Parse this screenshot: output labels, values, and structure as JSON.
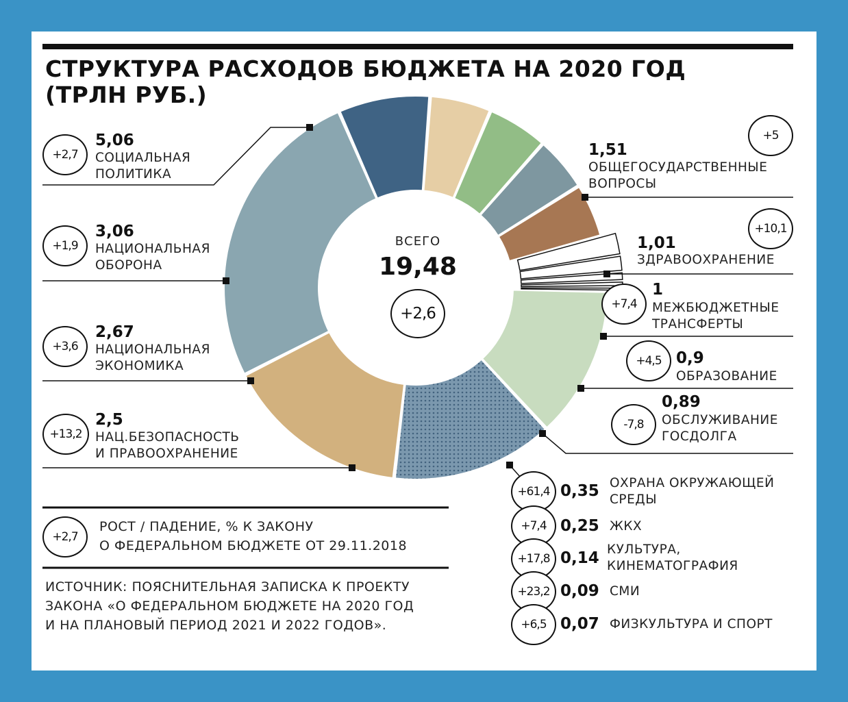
{
  "title_line1": "СТРУКТУРА РАСХОДОВ БЮДЖЕТА НА 2020 ГОД",
  "title_line2": "(ТРЛН РУБ.)",
  "center": {
    "label": "ВСЕГО",
    "total": "19,48",
    "change": "+2,6"
  },
  "legend": {
    "sample": "+2,7",
    "text": "РОСТ / ПАДЕНИЕ, % К ЗАКОНУ\nО ФЕДЕРАЛЬНОМ БЮДЖЕТЕ ОТ 29.11.2018"
  },
  "source": "ИСТОЧНИК: ПОЯСНИТЕЛЬНАЯ ЗАПИСКА К ПРОЕКТУ\nЗАКОНА «О ФЕДЕРАЛЬНОМ БЮДЖЕТЕ НА 2020 ГОД\nИ НА ПЛАНОВЫЙ ПЕРИОД 2021 И 2022 ГОДОВ».",
  "colors": {
    "social": "#8aa6b0",
    "general": "#3f6384",
    "health": "#e6cea5",
    "transfers": "#92bd86",
    "education": "#7e97a0",
    "debt": "#a77753",
    "small": "#ffffff",
    "security": "#c8dcbf",
    "economy": "#6f8ea6",
    "defense": "#d2b17e"
  },
  "chart_data": {
    "type": "pie",
    "variant": "donut",
    "unit": "трлн руб.",
    "total": 19.48,
    "total_change": 2.6,
    "segments": [
      {
        "key": "social",
        "value": 5.06,
        "value_label": "5,06",
        "change": "+2,7",
        "label": "СОЦИАЛЬНАЯ\nПОЛИТИКА"
      },
      {
        "key": "general",
        "value": 1.51,
        "value_label": "1,51",
        "change": "+5",
        "label": "ОБЩЕГОСУДАРСТВЕННЫЕ\nВОПРОСЫ"
      },
      {
        "key": "health",
        "value": 1.01,
        "value_label": "1,01",
        "change": "+10,1",
        "label": "ЗДРАВООХРАНЕНИЕ"
      },
      {
        "key": "transfers",
        "value": 1.0,
        "value_label": "1",
        "change": "+7,4",
        "label": "МЕЖБЮДЖЕТНЫЕ\nТРАНСФЕРТЫ"
      },
      {
        "key": "education",
        "value": 0.9,
        "value_label": "0,9",
        "change": "+4,5",
        "label": "ОБРАЗОВАНИЕ"
      },
      {
        "key": "debt",
        "value": 0.89,
        "value_label": "0,89",
        "change": "-7,8",
        "label": "ОБСЛУЖИВАНИЕ\nГОСДОЛГА"
      },
      {
        "key": "env",
        "value": 0.35,
        "value_label": "0,35",
        "change": "+61,4",
        "label": "ОХРАНА ОКРУЖАЮЩЕЙ\nСРЕДЫ",
        "group": "small"
      },
      {
        "key": "housing",
        "value": 0.25,
        "value_label": "0,25",
        "change": "+7,4",
        "label": "ЖКХ",
        "group": "small"
      },
      {
        "key": "culture",
        "value": 0.14,
        "value_label": "0,14",
        "change": "+17,8",
        "label": "КУЛЬТУРА,\nКИНЕМАТОГРАФИЯ",
        "group": "small"
      },
      {
        "key": "media",
        "value": 0.09,
        "value_label": "0,09",
        "change": "+23,2",
        "label": "СМИ",
        "group": "small"
      },
      {
        "key": "sport",
        "value": 0.07,
        "value_label": "0,07",
        "change": "+6,5",
        "label": "ФИЗКУЛЬТУРА И СПОРТ",
        "group": "small"
      },
      {
        "key": "security",
        "value": 2.5,
        "value_label": "2,5",
        "change": "+13,2",
        "label": "НАЦ.БЕЗОПАСНОСТЬ\nИ ПРАВООХРАНЕНИЕ"
      },
      {
        "key": "economy",
        "value": 2.67,
        "value_label": "2,67",
        "change": "+3,6",
        "label": "НАЦИОНАЛЬНАЯ\nЭКОНОМИКА",
        "pattern": "dots"
      },
      {
        "key": "defense",
        "value": 3.06,
        "value_label": "3,06",
        "change": "+1,9",
        "label": "НАЦИОНАЛЬНАЯ\nОБОРОНА"
      }
    ]
  }
}
